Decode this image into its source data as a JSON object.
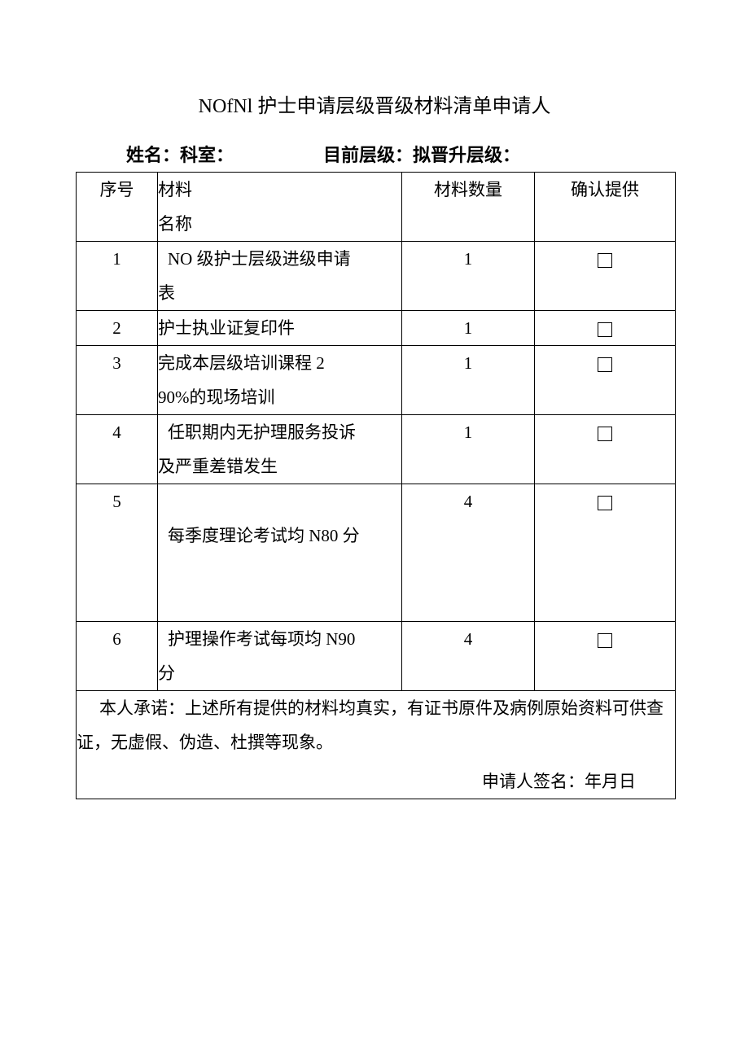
{
  "title": "NOfNl 护士申请层级晋级材料清单申请人",
  "info_line": {
    "name_label": "姓名：",
    "dept_label": "科室：",
    "current_level_label": "目前层级：",
    "target_level_label": "拟晋升层级："
  },
  "table": {
    "headers": {
      "seq": "序号",
      "name_l1": "材料",
      "name_l2": "名称",
      "qty": "材料数量",
      "confirm": "确认提供"
    },
    "rows": [
      {
        "seq": "1",
        "name_l1": "NO 级护士层级进级申请",
        "name_l2": "表",
        "qty": "1"
      },
      {
        "seq": "2",
        "name_l1": "护士执业证复印件",
        "name_l2": "",
        "qty": "1"
      },
      {
        "seq": "3",
        "name_l1": "完成本层级培训课程 2",
        "name_l2": "90%的现场培训",
        "qty": "1"
      },
      {
        "seq": "4",
        "name_l1": "任职期内无护理服务投诉",
        "name_l2": "及严重差错发生",
        "qty": "1"
      },
      {
        "seq": "5",
        "name_l1": "",
        "name_l2": "每季度理论考试均 N80 分",
        "qty": "4"
      },
      {
        "seq": "6",
        "name_l1": "护理操作考试每项均 N90",
        "name_l2": "分",
        "qty": "4"
      }
    ]
  },
  "footer": {
    "declaration": "本人承诺：上述所有提供的材料均真实，有证书原件及病例原始资料可供查证，无虚假、伪造、杜撰等现象。",
    "sign_label": "申请人签名：",
    "date_label": "年月日"
  },
  "style": {
    "page_bg": "#ffffff",
    "text_color": "#000000",
    "border_color": "#000000",
    "title_fontsize": 24,
    "body_fontsize": 21,
    "info_fontsize": 22
  }
}
